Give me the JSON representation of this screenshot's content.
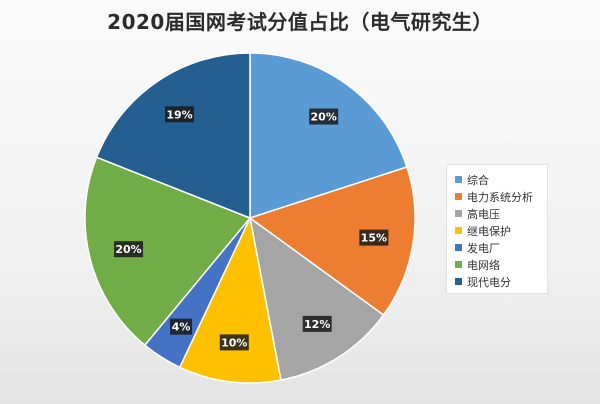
{
  "chart_data": {
    "type": "pie",
    "title": "2020届国网考试分值占比（电气研究生）",
    "categories": [
      "综合",
      "电力系统分析",
      "高电压",
      "继电保护",
      "发电厂",
      "电网络",
      "现代电分"
    ],
    "values": [
      20,
      15,
      12,
      10,
      4,
      20,
      19
    ],
    "value_labels": [
      "20%",
      "15%",
      "12%",
      "10%",
      "4%",
      "20%",
      "19%"
    ],
    "colors": [
      "#5b9bd5",
      "#ed7d31",
      "#a5a5a5",
      "#ffc000",
      "#4472c4",
      "#70ad47",
      "#255e91"
    ],
    "start_angle_deg": 0,
    "direction": "clockwise",
    "legend_position": "right"
  }
}
